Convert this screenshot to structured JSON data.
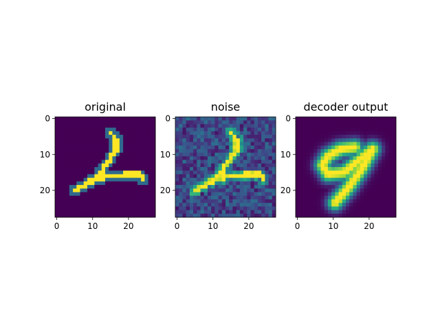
{
  "chart_data": [
    {
      "type": "heatmap",
      "title": "original",
      "xlabel": "",
      "ylabel": "",
      "xlim": [
        0,
        28
      ],
      "ylim": [
        28,
        0
      ],
      "xticks": [
        0,
        10,
        20
      ],
      "yticks": [
        0,
        10,
        20
      ],
      "colormap": "viridis",
      "content": "handwritten digit 2 on clean background"
    },
    {
      "type": "heatmap",
      "title": "noise",
      "xlabel": "",
      "ylabel": "",
      "xlim": [
        0,
        28
      ],
      "ylim": [
        28,
        0
      ],
      "xticks": [
        0,
        10,
        20
      ],
      "yticks": [
        0,
        10,
        20
      ],
      "colormap": "viridis",
      "content": "digit 2 with added random noise"
    },
    {
      "type": "heatmap",
      "title": "decoder output",
      "xlabel": "",
      "ylabel": "",
      "xlim": [
        0,
        28
      ],
      "ylim": [
        28,
        0
      ],
      "xticks": [
        0,
        10,
        20
      ],
      "yticks": [
        0,
        10,
        20
      ],
      "colormap": "viridis",
      "content": "blurry reconstruction resembling digit 9"
    }
  ],
  "colors": {
    "background_low": "#440154",
    "mid": "#21918c",
    "high": "#fde725"
  }
}
